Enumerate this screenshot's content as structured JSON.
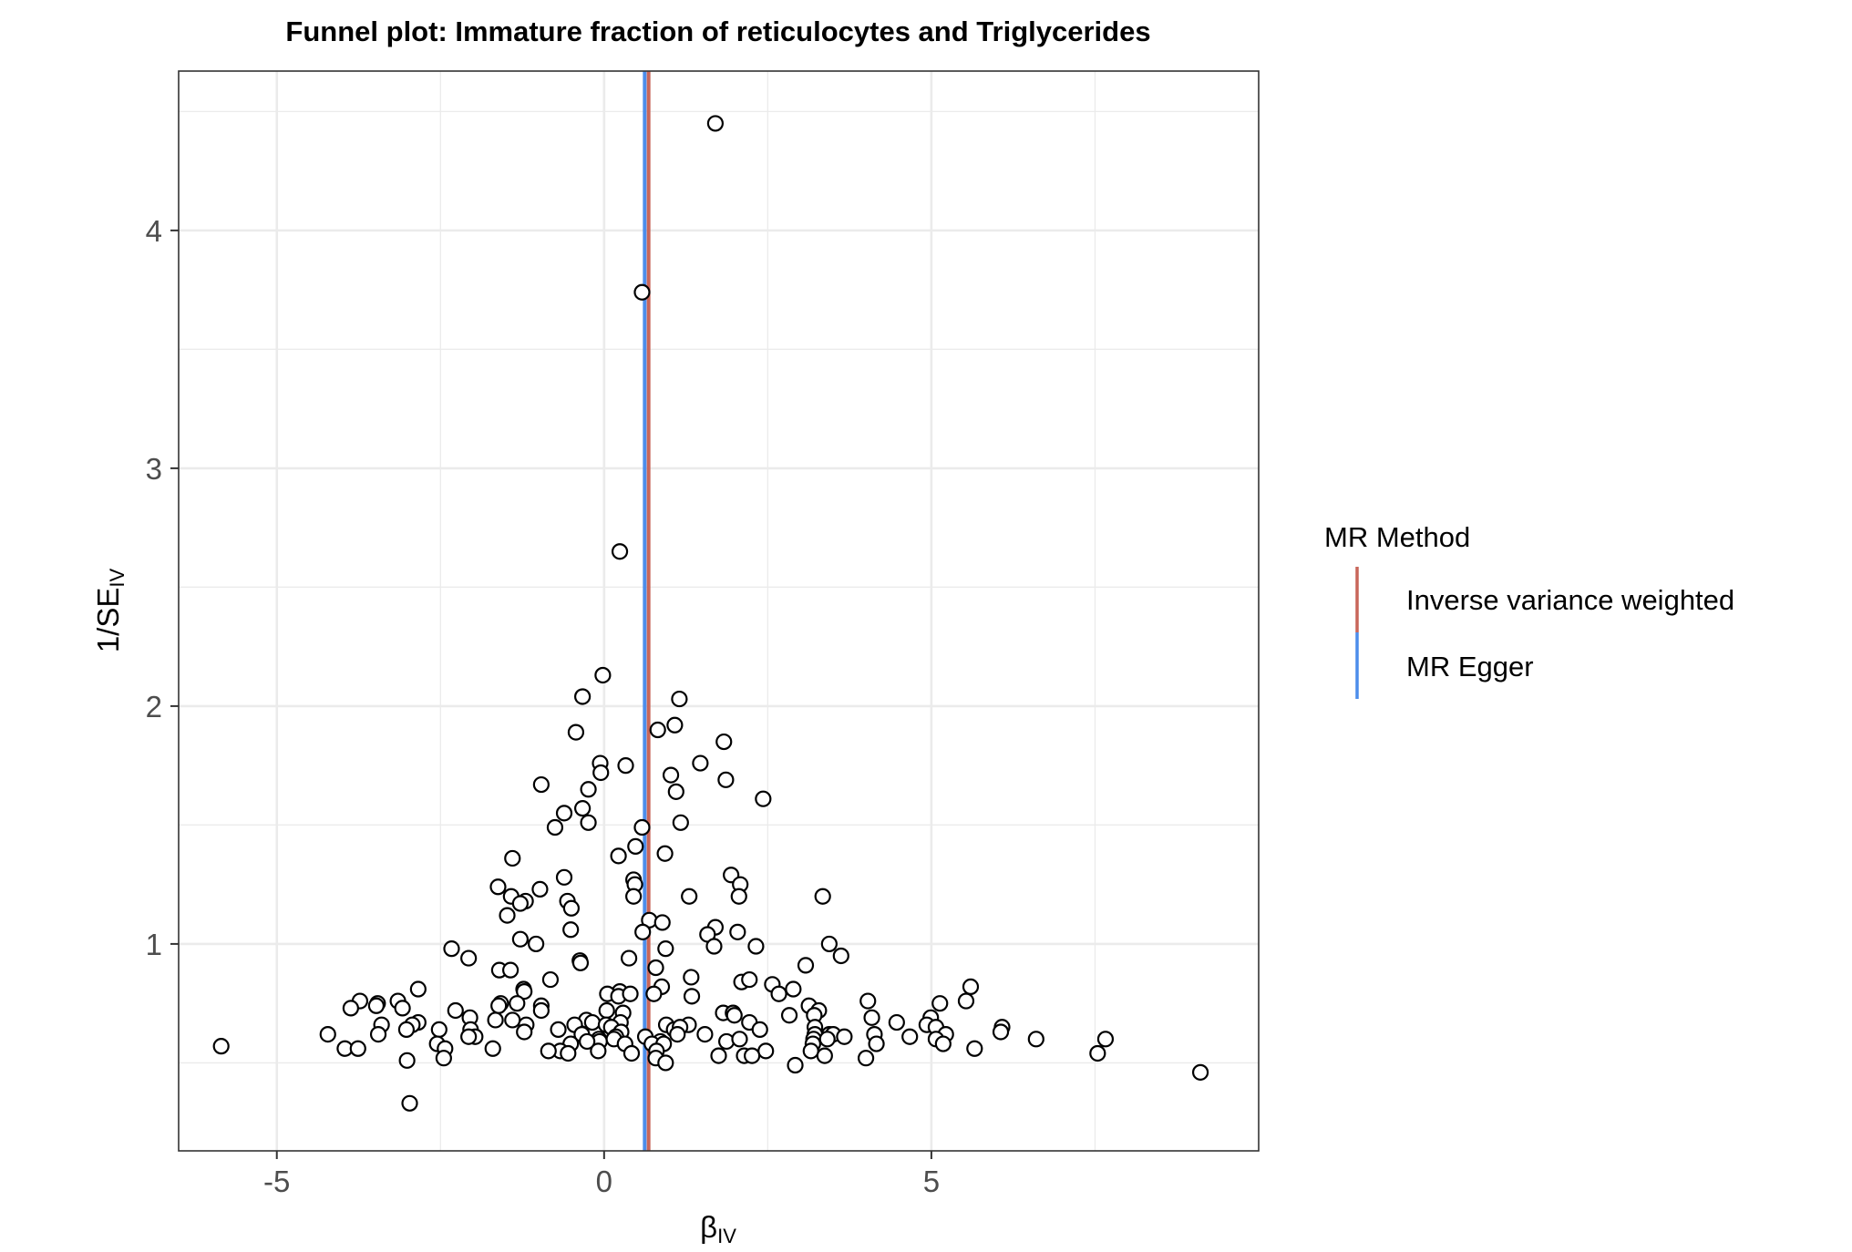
{
  "chart_data": {
    "type": "scatter",
    "title": "Funnel plot: Immature fraction of reticulocytes and Triglycerides",
    "xlabel": {
      "main": "β",
      "sub": "IV"
    },
    "ylabel": {
      "main": "1/SE",
      "sub": "IV"
    },
    "xlim": [
      -6.5,
      10.0
    ],
    "ylim": [
      0.13,
      4.67
    ],
    "x_ticks": [
      -5,
      0,
      5
    ],
    "x_tick_labels": [
      "-5",
      "0",
      "5"
    ],
    "y_ticks": [
      1,
      2,
      3,
      4
    ],
    "y_tick_labels": [
      "1",
      "2",
      "3",
      "4"
    ],
    "grid": true,
    "legend": {
      "title": "MR Method",
      "position": "right",
      "entries": [
        {
          "label": "Inverse variance weighted",
          "color": "#C8665A"
        },
        {
          "label": "MR Egger",
          "color": "#4C8DEB"
        }
      ]
    },
    "lines": [
      {
        "method": "Inverse variance weighted",
        "x": 0.68,
        "color": "#C8665A"
      },
      {
        "method": "MR Egger",
        "x": 0.62,
        "color": "#4C8DEB"
      }
    ],
    "points": [
      [
        1.7,
        4.45
      ],
      [
        0.58,
        3.74
      ],
      [
        0.24,
        2.65
      ],
      [
        -0.02,
        2.13
      ],
      [
        -0.33,
        2.04
      ],
      [
        1.15,
        2.03
      ],
      [
        -0.43,
        1.89
      ],
      [
        0.82,
        1.9
      ],
      [
        1.08,
        1.92
      ],
      [
        1.83,
        1.85
      ],
      [
        -0.06,
        1.76
      ],
      [
        0.33,
        1.75
      ],
      [
        -0.05,
        1.72
      ],
      [
        1.47,
        1.76
      ],
      [
        1.02,
        1.71
      ],
      [
        1.86,
        1.69
      ],
      [
        -0.96,
        1.67
      ],
      [
        -0.24,
        1.65
      ],
      [
        1.1,
        1.64
      ],
      [
        2.43,
        1.61
      ],
      [
        -0.33,
        1.57
      ],
      [
        -0.61,
        1.55
      ],
      [
        -0.24,
        1.51
      ],
      [
        -0.75,
        1.49
      ],
      [
        0.58,
        1.49
      ],
      [
        1.17,
        1.51
      ],
      [
        0.48,
        1.41
      ],
      [
        0.22,
        1.37
      ],
      [
        0.93,
        1.38
      ],
      [
        -1.4,
        1.36
      ],
      [
        -0.61,
        1.28
      ],
      [
        0.45,
        1.27
      ],
      [
        1.94,
        1.29
      ],
      [
        -1.62,
        1.24
      ],
      [
        -0.98,
        1.23
      ],
      [
        0.47,
        1.25
      ],
      [
        2.08,
        1.25
      ],
      [
        -1.42,
        1.2
      ],
      [
        -1.2,
        1.18
      ],
      [
        0.45,
        1.2
      ],
      [
        1.3,
        1.2
      ],
      [
        2.06,
        1.2
      ],
      [
        3.34,
        1.2
      ],
      [
        -1.28,
        1.17
      ],
      [
        -0.56,
        1.18
      ],
      [
        -0.5,
        1.15
      ],
      [
        -1.48,
        1.12
      ],
      [
        0.69,
        1.1
      ],
      [
        0.89,
        1.09
      ],
      [
        -0.51,
        1.06
      ],
      [
        0.59,
        1.05
      ],
      [
        1.7,
        1.07
      ],
      [
        1.58,
        1.04
      ],
      [
        2.04,
        1.05
      ],
      [
        -1.28,
        1.02
      ],
      [
        -1.04,
        1.0
      ],
      [
        1.68,
        0.99
      ],
      [
        2.32,
        0.99
      ],
      [
        3.44,
        1.0
      ],
      [
        -2.33,
        0.98
      ],
      [
        0.94,
        0.98
      ],
      [
        -2.07,
        0.94
      ],
      [
        0.38,
        0.94
      ],
      [
        -0.37,
        0.93
      ],
      [
        -0.36,
        0.92
      ],
      [
        3.62,
        0.95
      ],
      [
        3.08,
        0.91
      ],
      [
        -1.6,
        0.89
      ],
      [
        -1.43,
        0.89
      ],
      [
        0.79,
        0.9
      ],
      [
        -0.82,
        0.85
      ],
      [
        1.33,
        0.86
      ],
      [
        2.1,
        0.84
      ],
      [
        2.22,
        0.85
      ],
      [
        2.57,
        0.83
      ],
      [
        5.6,
        0.82
      ],
      [
        -2.84,
        0.81
      ],
      [
        -1.23,
        0.81
      ],
      [
        -1.22,
        0.8
      ],
      [
        0.24,
        0.8
      ],
      [
        0.88,
        0.82
      ],
      [
        2.89,
        0.81
      ],
      [
        0.05,
        0.79
      ],
      [
        0.22,
        0.78
      ],
      [
        0.4,
        0.79
      ],
      [
        0.76,
        0.79
      ],
      [
        1.34,
        0.78
      ],
      [
        2.67,
        0.79
      ],
      [
        -3.73,
        0.76
      ],
      [
        -3.46,
        0.75
      ],
      [
        -3.15,
        0.76
      ],
      [
        -1.58,
        0.75
      ],
      [
        -1.33,
        0.75
      ],
      [
        4.03,
        0.76
      ],
      [
        5.13,
        0.75
      ],
      [
        5.53,
        0.76
      ],
      [
        -3.48,
        0.74
      ],
      [
        -3.08,
        0.73
      ],
      [
        -1.61,
        0.74
      ],
      [
        -0.96,
        0.74
      ],
      [
        3.13,
        0.74
      ],
      [
        -3.87,
        0.73
      ],
      [
        -2.27,
        0.72
      ],
      [
        -0.96,
        0.72
      ],
      [
        0.04,
        0.72
      ],
      [
        1.82,
        0.71
      ],
      [
        1.97,
        0.71
      ],
      [
        3.28,
        0.72
      ],
      [
        0.29,
        0.71
      ],
      [
        1.99,
        0.7
      ],
      [
        2.83,
        0.7
      ],
      [
        3.21,
        0.7
      ],
      [
        4.99,
        0.69
      ],
      [
        -2.84,
        0.67
      ],
      [
        -2.05,
        0.69
      ],
      [
        -1.4,
        0.68
      ],
      [
        -1.66,
        0.68
      ],
      [
        -0.27,
        0.68
      ],
      [
        -0.18,
        0.67
      ],
      [
        -0.45,
        0.66
      ],
      [
        0.03,
        0.66
      ],
      [
        0.25,
        0.67
      ],
      [
        0.95,
        0.66
      ],
      [
        1.29,
        0.66
      ],
      [
        2.22,
        0.67
      ],
      [
        4.47,
        0.67
      ],
      [
        4.09,
        0.69
      ],
      [
        -3.4,
        0.66
      ],
      [
        -2.93,
        0.66
      ],
      [
        -2.04,
        0.64
      ],
      [
        -1.19,
        0.66
      ],
      [
        -0.7,
        0.64
      ],
      [
        0.11,
        0.65
      ],
      [
        0.26,
        0.63
      ],
      [
        1.07,
        0.64
      ],
      [
        1.16,
        0.65
      ],
      [
        2.38,
        0.64
      ],
      [
        3.22,
        0.65
      ],
      [
        4.93,
        0.66
      ],
      [
        5.07,
        0.65
      ],
      [
        6.08,
        0.65
      ],
      [
        -3.02,
        0.64
      ],
      [
        -2.52,
        0.64
      ],
      [
        -3.45,
        0.62
      ],
      [
        -1.22,
        0.63
      ],
      [
        -0.34,
        0.62
      ],
      [
        0.18,
        0.61
      ],
      [
        0.63,
        0.61
      ],
      [
        1.12,
        0.62
      ],
      [
        1.54,
        0.62
      ],
      [
        3.22,
        0.62
      ],
      [
        3.44,
        0.62
      ],
      [
        3.5,
        0.62
      ],
      [
        4.13,
        0.62
      ],
      [
        4.67,
        0.61
      ],
      [
        5.22,
        0.62
      ],
      [
        6.06,
        0.63
      ],
      [
        -4.22,
        0.62
      ],
      [
        -1.97,
        0.61
      ],
      [
        -2.07,
        0.61
      ],
      [
        -0.08,
        0.6
      ],
      [
        -0.07,
        0.59
      ],
      [
        0.15,
        0.6
      ],
      [
        0.86,
        0.59
      ],
      [
        1.87,
        0.59
      ],
      [
        2.07,
        0.6
      ],
      [
        3.2,
        0.6
      ],
      [
        3.41,
        0.6
      ],
      [
        3.67,
        0.61
      ],
      [
        5.07,
        0.6
      ],
      [
        6.6,
        0.6
      ],
      [
        7.66,
        0.6
      ],
      [
        -5.85,
        0.57
      ],
      [
        -2.55,
        0.58
      ],
      [
        -2.43,
        0.56
      ],
      [
        -0.51,
        0.58
      ],
      [
        -0.26,
        0.59
      ],
      [
        0.32,
        0.58
      ],
      [
        0.73,
        0.58
      ],
      [
        0.91,
        0.58
      ],
      [
        3.19,
        0.58
      ],
      [
        5.18,
        0.58
      ],
      [
        -3.96,
        0.56
      ],
      [
        -3.76,
        0.56
      ],
      [
        -1.7,
        0.56
      ],
      [
        -0.67,
        0.55
      ],
      [
        -0.85,
        0.55
      ],
      [
        -0.55,
        0.54
      ],
      [
        -0.09,
        0.55
      ],
      [
        0.42,
        0.54
      ],
      [
        0.8,
        0.55
      ],
      [
        1.75,
        0.53
      ],
      [
        2.14,
        0.53
      ],
      [
        2.47,
        0.55
      ],
      [
        3.16,
        0.55
      ],
      [
        3.37,
        0.53
      ],
      [
        5.66,
        0.56
      ],
      [
        7.54,
        0.54
      ],
      [
        4.16,
        0.58
      ],
      [
        -2.45,
        0.52
      ],
      [
        -3.01,
        0.51
      ],
      [
        0.79,
        0.52
      ],
      [
        2.26,
        0.53
      ],
      [
        4.0,
        0.52
      ],
      [
        0.94,
        0.5
      ],
      [
        2.92,
        0.49
      ],
      [
        9.11,
        0.46
      ],
      [
        -2.97,
        0.33
      ]
    ]
  }
}
